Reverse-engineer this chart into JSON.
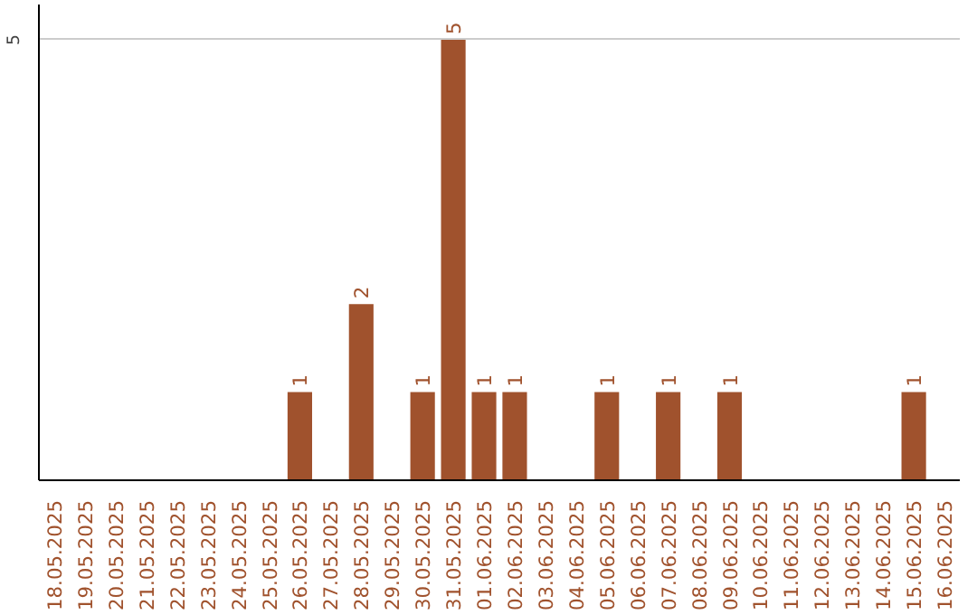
{
  "chart_data": {
    "type": "bar",
    "categories": [
      "18.05.2025",
      "19.05.2025",
      "20.05.2025",
      "21.05.2025",
      "22.05.2025",
      "23.05.2025",
      "24.05.2025",
      "25.05.2025",
      "26.05.2025",
      "27.05.2025",
      "28.05.2025",
      "29.05.2025",
      "30.05.2025",
      "31.05.2025",
      "01.06.2025",
      "02.06.2025",
      "03.06.2025",
      "04.06.2025",
      "05.06.2025",
      "06.06.2025",
      "07.06.2025",
      "08.06.2025",
      "09.06.2025",
      "10.06.2025",
      "11.06.2025",
      "12.06.2025",
      "13.06.2025",
      "14.06.2025",
      "15.06.2025",
      "16.06.2025"
    ],
    "values": [
      0,
      0,
      0,
      0,
      0,
      0,
      0,
      0,
      1,
      0,
      2,
      0,
      1,
      5,
      1,
      1,
      0,
      0,
      1,
      0,
      1,
      0,
      1,
      0,
      0,
      0,
      0,
      0,
      1,
      0
    ],
    "value_labels": [
      null,
      null,
      null,
      null,
      null,
      null,
      null,
      null,
      "1",
      null,
      "2",
      null,
      "1",
      "5",
      "1",
      "1",
      null,
      null,
      "1",
      null,
      "1",
      null,
      "1",
      null,
      null,
      null,
      null,
      null,
      "1",
      null
    ],
    "color": "#a0522d",
    "ylim": [
      0,
      5.4
    ],
    "yticks": [
      5
    ],
    "grid": "y"
  }
}
